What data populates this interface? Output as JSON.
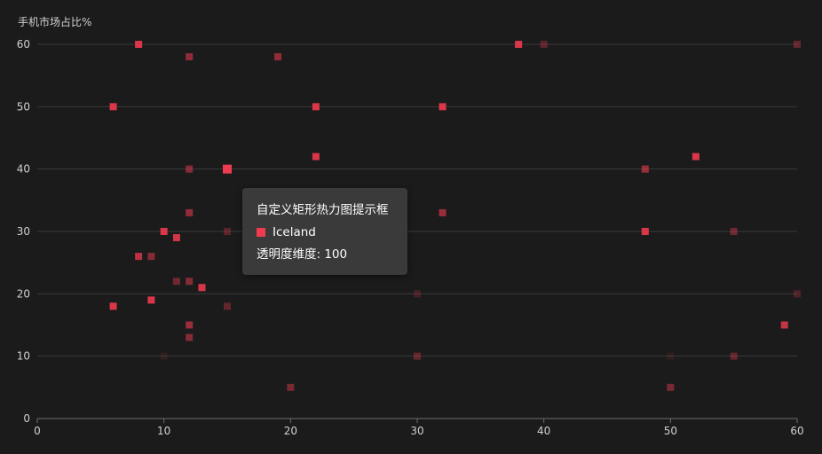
{
  "chart_data": {
    "type": "scatter",
    "title": "",
    "xlabel": "",
    "ylabel": "手机市场占比%",
    "xlim": [
      0,
      60
    ],
    "ylim": [
      0,
      60
    ],
    "x_ticks": [
      "0",
      "10",
      "20",
      "30",
      "40",
      "50",
      "60"
    ],
    "y_ticks": [
      "0",
      "10",
      "20",
      "30",
      "40",
      "50",
      "60"
    ],
    "grid": true,
    "marker_color": "#ee3b4f",
    "background": "#1b1b1b",
    "series": [
      {
        "points": [
          {
            "x": 8,
            "y": 60,
            "opacity": 0.9
          },
          {
            "x": 12,
            "y": 58,
            "opacity": 0.55
          },
          {
            "x": 19,
            "y": 58,
            "opacity": 0.55
          },
          {
            "x": 38,
            "y": 60,
            "opacity": 0.9
          },
          {
            "x": 40,
            "y": 60,
            "opacity": 0.3
          },
          {
            "x": 60,
            "y": 60,
            "opacity": 0.35
          },
          {
            "x": 6,
            "y": 50,
            "opacity": 0.9
          },
          {
            "x": 22,
            "y": 50,
            "opacity": 0.9
          },
          {
            "x": 32,
            "y": 50,
            "opacity": 0.9
          },
          {
            "x": 12,
            "y": 40,
            "opacity": 0.5
          },
          {
            "x": 15,
            "y": 40,
            "opacity": 1.0
          },
          {
            "x": 22,
            "y": 42,
            "opacity": 0.9
          },
          {
            "x": 48,
            "y": 40,
            "opacity": 0.6
          },
          {
            "x": 52,
            "y": 42,
            "opacity": 0.9
          },
          {
            "x": 12,
            "y": 33,
            "opacity": 0.55
          },
          {
            "x": 32,
            "y": 33,
            "opacity": 0.6
          },
          {
            "x": 10,
            "y": 30,
            "opacity": 0.9
          },
          {
            "x": 11,
            "y": 29,
            "opacity": 0.85
          },
          {
            "x": 15,
            "y": 30,
            "opacity": 0.3
          },
          {
            "x": 48,
            "y": 30,
            "opacity": 0.9
          },
          {
            "x": 55,
            "y": 30,
            "opacity": 0.4
          },
          {
            "x": 8,
            "y": 26,
            "opacity": 0.75
          },
          {
            "x": 9,
            "y": 26,
            "opacity": 0.5
          },
          {
            "x": 11,
            "y": 22,
            "opacity": 0.4
          },
          {
            "x": 12,
            "y": 22,
            "opacity": 0.5
          },
          {
            "x": 13,
            "y": 21,
            "opacity": 0.9
          },
          {
            "x": 6,
            "y": 18,
            "opacity": 0.9
          },
          {
            "x": 9,
            "y": 19,
            "opacity": 0.9
          },
          {
            "x": 15,
            "y": 18,
            "opacity": 0.35
          },
          {
            "x": 30,
            "y": 20,
            "opacity": 0.2
          },
          {
            "x": 60,
            "y": 20,
            "opacity": 0.25
          },
          {
            "x": 12,
            "y": 15,
            "opacity": 0.6
          },
          {
            "x": 12,
            "y": 13,
            "opacity": 0.5
          },
          {
            "x": 59,
            "y": 15,
            "opacity": 0.8
          },
          {
            "x": 10,
            "y": 10,
            "opacity": 0.1
          },
          {
            "x": 30,
            "y": 10,
            "opacity": 0.35
          },
          {
            "x": 50,
            "y": 10,
            "opacity": 0.1
          },
          {
            "x": 55,
            "y": 10,
            "opacity": 0.35
          },
          {
            "x": 20,
            "y": 5,
            "opacity": 0.45
          },
          {
            "x": 50,
            "y": 5,
            "opacity": 0.45
          }
        ]
      }
    ],
    "highlighted": {
      "x": 15,
      "y": 40
    }
  },
  "tooltip": {
    "title": "自定义矩形热力图提示框",
    "series_name": "Iceland",
    "value_label": "透明度维度: 100"
  }
}
